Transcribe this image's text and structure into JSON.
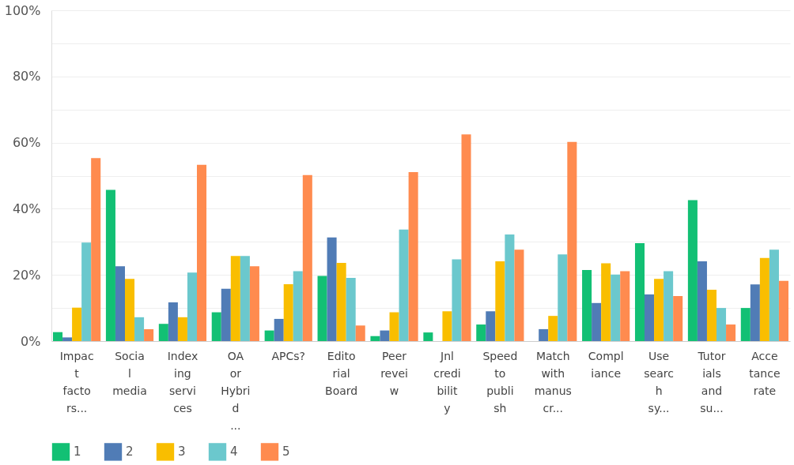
{
  "chart_data": {
    "type": "bar",
    "categories": [
      "Impac\nt\nfacto\nrs...",
      "Socia\nl\nmedia",
      "Index\ning\nservi\nces",
      "OA\nor\nHybri\nd\n...",
      "APCs?",
      "Edito\nrial\nBoard",
      "Peer\nrevei\nw",
      "Jnl\ncredi\nbilit\ny",
      "Speed\nto\npubli\nsh",
      "Match\nwith\nmanus\ncr...",
      "Compl\niance",
      "Use\nsearc\nh\nsy...",
      "Tutor\nials\nand\nsu...",
      "Acce\ntance\nrate"
    ],
    "series": [
      {
        "name": "1",
        "color": "#12c074",
        "values": [
          2.7,
          45.7,
          5.2,
          8.7,
          3.2,
          19.7,
          1.5,
          2.6,
          5.0,
          null,
          21.5,
          29.6,
          42.6,
          10.0
        ]
      },
      {
        "name": "2",
        "color": "#507cb6",
        "values": [
          1.1,
          22.6,
          11.7,
          15.8,
          6.7,
          31.3,
          3.2,
          null,
          9.0,
          3.6,
          11.5,
          14.1,
          24.1,
          17.1
        ]
      },
      {
        "name": "3",
        "color": "#f9be00",
        "values": [
          10.1,
          18.8,
          7.2,
          25.7,
          17.2,
          23.6,
          8.7,
          9.0,
          24.1,
          7.6,
          23.5,
          18.8,
          15.5,
          25.1
        ]
      },
      {
        "name": "4",
        "color": "#6bc8cd",
        "values": [
          29.8,
          7.2,
          20.7,
          25.7,
          21.1,
          19.1,
          33.7,
          24.7,
          32.2,
          26.2,
          20.1,
          21.1,
          10.0,
          27.6
        ]
      },
      {
        "name": "5",
        "color": "#ff8b4f",
        "values": [
          55.3,
          3.6,
          53.3,
          22.6,
          50.2,
          4.7,
          51.1,
          62.5,
          27.6,
          60.2,
          21.1,
          13.6,
          5.0,
          18.2
        ]
      }
    ],
    "ylim": [
      0,
      100
    ],
    "yticks": [
      {
        "value": 0,
        "label": "0%"
      },
      {
        "value": 10,
        "label": null
      },
      {
        "value": 20,
        "label": "20%"
      },
      {
        "value": 30,
        "label": null
      },
      {
        "value": 40,
        "label": "40%"
      },
      {
        "value": 50,
        "label": null
      },
      {
        "value": 60,
        "label": "60%"
      },
      {
        "value": 70,
        "label": null
      },
      {
        "value": 80,
        "label": "80%"
      },
      {
        "value": 90,
        "label": null
      },
      {
        "value": 100,
        "label": "100%"
      }
    ],
    "grid": "y",
    "legend": "bottom left"
  }
}
